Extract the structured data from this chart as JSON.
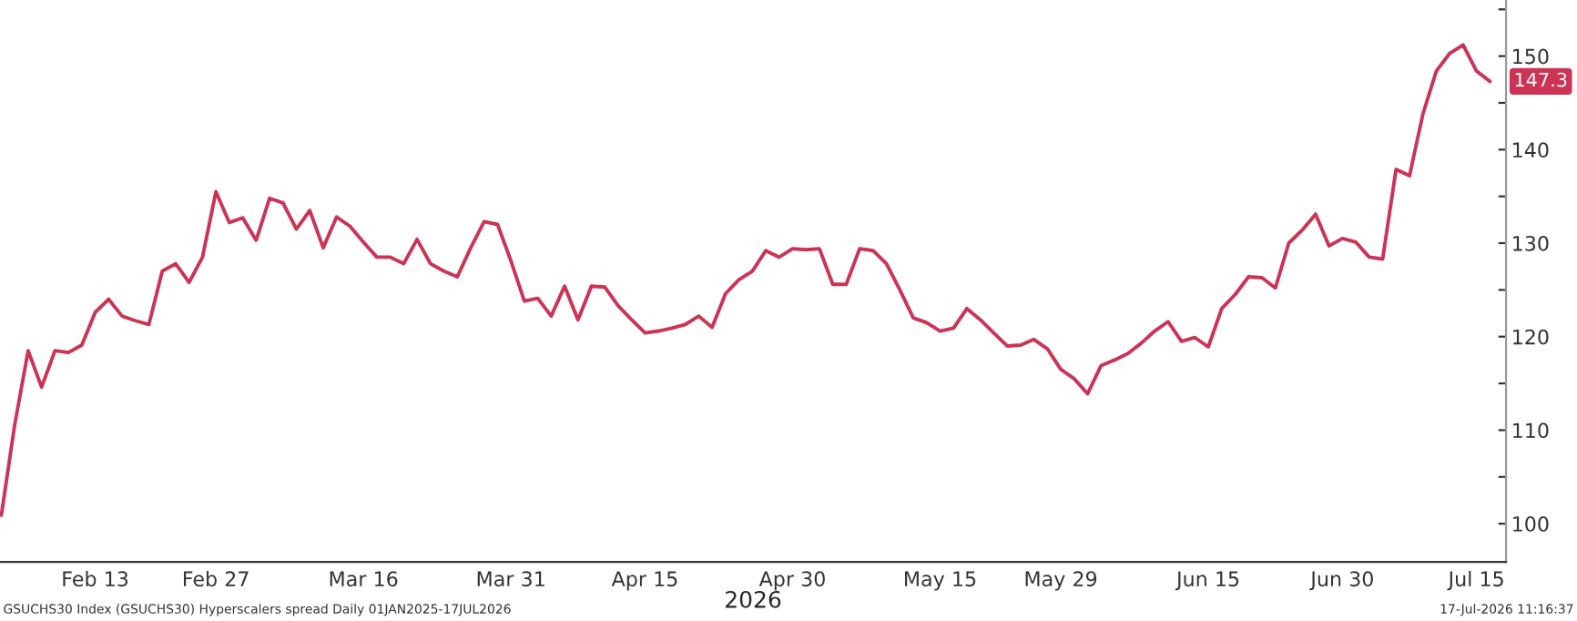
{
  "chart_data": {
    "type": "line",
    "categories": [
      null,
      null,
      null,
      null,
      null,
      null,
      null,
      "Feb 13",
      null,
      null,
      null,
      null,
      null,
      null,
      null,
      null,
      "Feb 27",
      null,
      null,
      null,
      null,
      null,
      null,
      null,
      null,
      null,
      null,
      "Mar 16",
      null,
      null,
      null,
      null,
      null,
      null,
      null,
      null,
      null,
      null,
      "Mar 31",
      null,
      null,
      null,
      null,
      null,
      null,
      null,
      null,
      null,
      "Apr 15",
      null,
      null,
      null,
      null,
      null,
      null,
      null,
      null,
      null,
      null,
      "Apr 30",
      null,
      null,
      null,
      null,
      null,
      null,
      null,
      null,
      null,
      null,
      "May 15",
      null,
      null,
      null,
      null,
      null,
      null,
      null,
      null,
      "May 29",
      null,
      null,
      null,
      null,
      null,
      null,
      null,
      null,
      null,
      null,
      "Jun 15",
      null,
      null,
      null,
      null,
      null,
      null,
      null,
      null,
      null,
      "Jun 30",
      null,
      null,
      null,
      null,
      null,
      null,
      null,
      null,
      null,
      "Jul 15",
      null
    ],
    "series": [
      {
        "color": "#cc3355",
        "values": [
          100.9,
          110.6,
          118.5,
          114.6,
          118.5,
          118.3,
          119.1,
          122.6,
          124.0,
          122.2,
          121.7,
          121.3,
          127.0,
          127.8,
          125.8,
          128.5,
          135.5,
          132.2,
          132.7,
          130.3,
          134.8,
          134.3,
          131.5,
          133.5,
          129.5,
          132.8,
          131.8,
          130.1,
          128.5,
          128.5,
          127.8,
          130.4,
          127.8,
          127.0,
          126.4,
          129.5,
          132.3,
          132.0,
          128.1,
          123.8,
          124.1,
          122.2,
          125.4,
          121.8,
          125.4,
          125.3,
          123.3,
          121.8,
          120.4,
          120.6,
          120.9,
          121.3,
          122.2,
          121.0,
          124.6,
          126.1,
          127.0,
          129.2,
          128.5,
          129.4,
          129.3,
          129.4,
          125.6,
          125.6,
          129.4,
          129.2,
          127.8,
          125.0,
          122.0,
          121.5,
          120.6,
          120.9,
          123.0,
          121.8,
          120.4,
          119.0,
          119.1,
          119.7,
          118.7,
          116.5,
          115.5,
          113.9,
          116.9,
          117.5,
          118.2,
          119.3,
          120.6,
          121.6,
          119.5,
          119.9,
          118.9,
          123.0,
          124.5,
          126.4,
          126.3,
          125.2,
          130.0,
          131.4,
          133.1,
          129.7,
          130.5,
          130.1,
          128.5,
          128.3,
          137.9,
          137.2,
          143.8,
          148.4,
          150.3,
          151.2,
          148.4,
          147.3
        ],
        "value_labels": [
          null,
          null,
          null,
          null,
          null,
          null,
          null,
          null,
          null,
          null,
          null,
          null,
          null,
          null,
          null,
          null,
          null,
          null,
          null,
          null,
          null,
          null,
          null,
          null,
          null,
          null,
          null,
          null,
          null,
          null,
          null,
          null,
          null,
          null,
          null,
          null,
          null,
          null,
          null,
          null,
          null,
          null,
          null,
          null,
          null,
          null,
          null,
          null,
          null,
          null,
          null,
          null,
          null,
          null,
          null,
          null,
          null,
          null,
          null,
          null,
          null,
          null,
          null,
          null,
          null,
          null,
          null,
          null,
          null,
          null,
          null,
          null,
          null,
          null,
          null,
          null,
          null,
          null,
          null,
          null,
          null,
          null,
          null,
          null,
          null,
          null,
          null,
          null,
          null,
          null,
          null,
          null,
          null,
          null,
          null,
          null,
          null,
          null,
          null,
          null,
          null,
          null,
          null,
          null,
          null,
          null,
          null,
          null,
          null,
          null,
          null,
          "147.3"
        ]
      }
    ],
    "xlabel": "2026",
    "ylim": [
      95.9,
      156
    ],
    "yticks": [
      100,
      {
        "value": 105,
        "label": null
      },
      110,
      {
        "value": 115,
        "label": null
      },
      120,
      {
        "value": 125,
        "label": null
      },
      130,
      {
        "value": 135,
        "label": null
      },
      140,
      {
        "value": 145,
        "label": null
      },
      150,
      {
        "value": 155,
        "label": null
      }
    ],
    "annotations": [
      "GSUCHS30 Index (GSUCHS30) Hyperscalers spread Daily 01JAN2025-17JUL2026",
      "17-Jul-2026 11:16:37"
    ],
    "grid": false,
    "legend": false
  }
}
